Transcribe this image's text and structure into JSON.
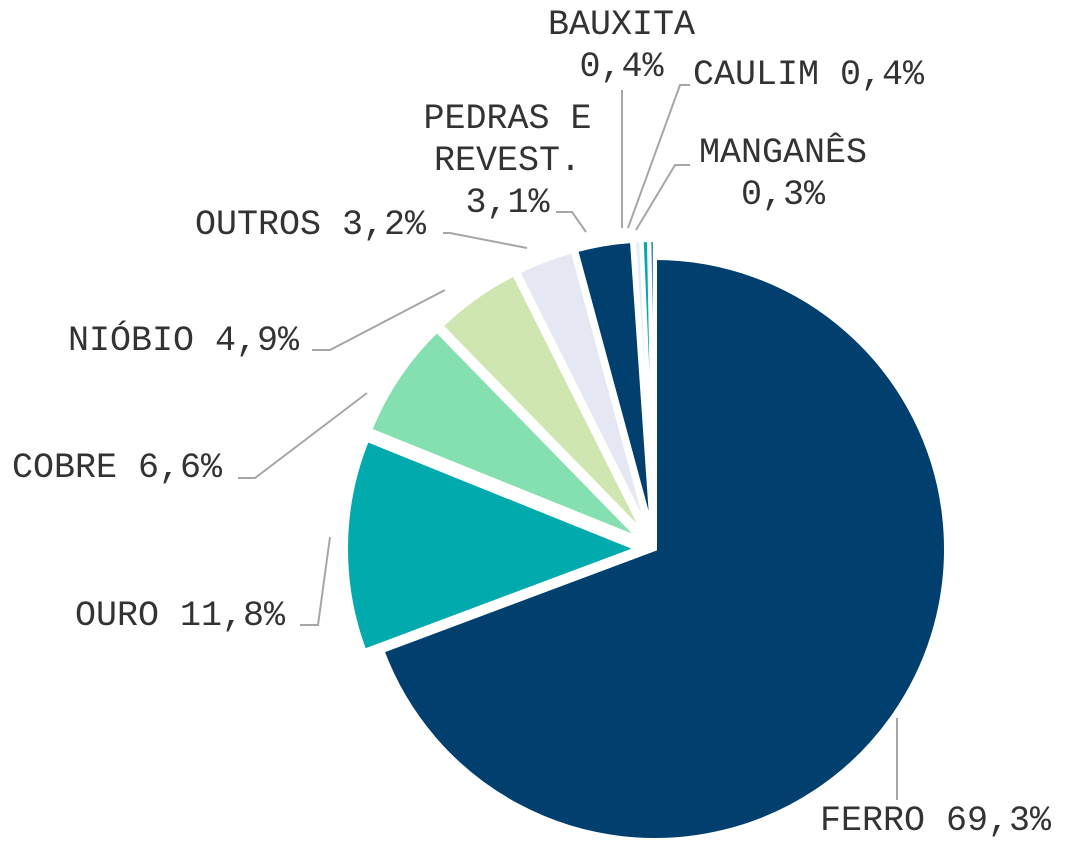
{
  "chart_data": {
    "type": "pie",
    "categories": [
      "FERRO",
      "OURO",
      "COBRE",
      "NIÓBIO",
      "OUTROS",
      "PEDRAS E REVEST.",
      "BAUXITA",
      "CAULIM",
      "MANGANÊS"
    ],
    "values": [
      69.3,
      11.8,
      6.6,
      4.9,
      3.2,
      3.1,
      0.4,
      0.4,
      0.3
    ],
    "value_labels": [
      "69,3%",
      "11,8%",
      "6,6%",
      "4,9%",
      "3,2%",
      "3,1%",
      "0,4%",
      "0,4%",
      "0,3%"
    ],
    "colors": [
      "#003f6e",
      "#00aaad",
      "#84e0b0",
      "#cfe6b0",
      "#e5e8f3",
      "#003f6e",
      "#e3eef8",
      "#00aaad",
      "#1f7a7a"
    ]
  }
}
